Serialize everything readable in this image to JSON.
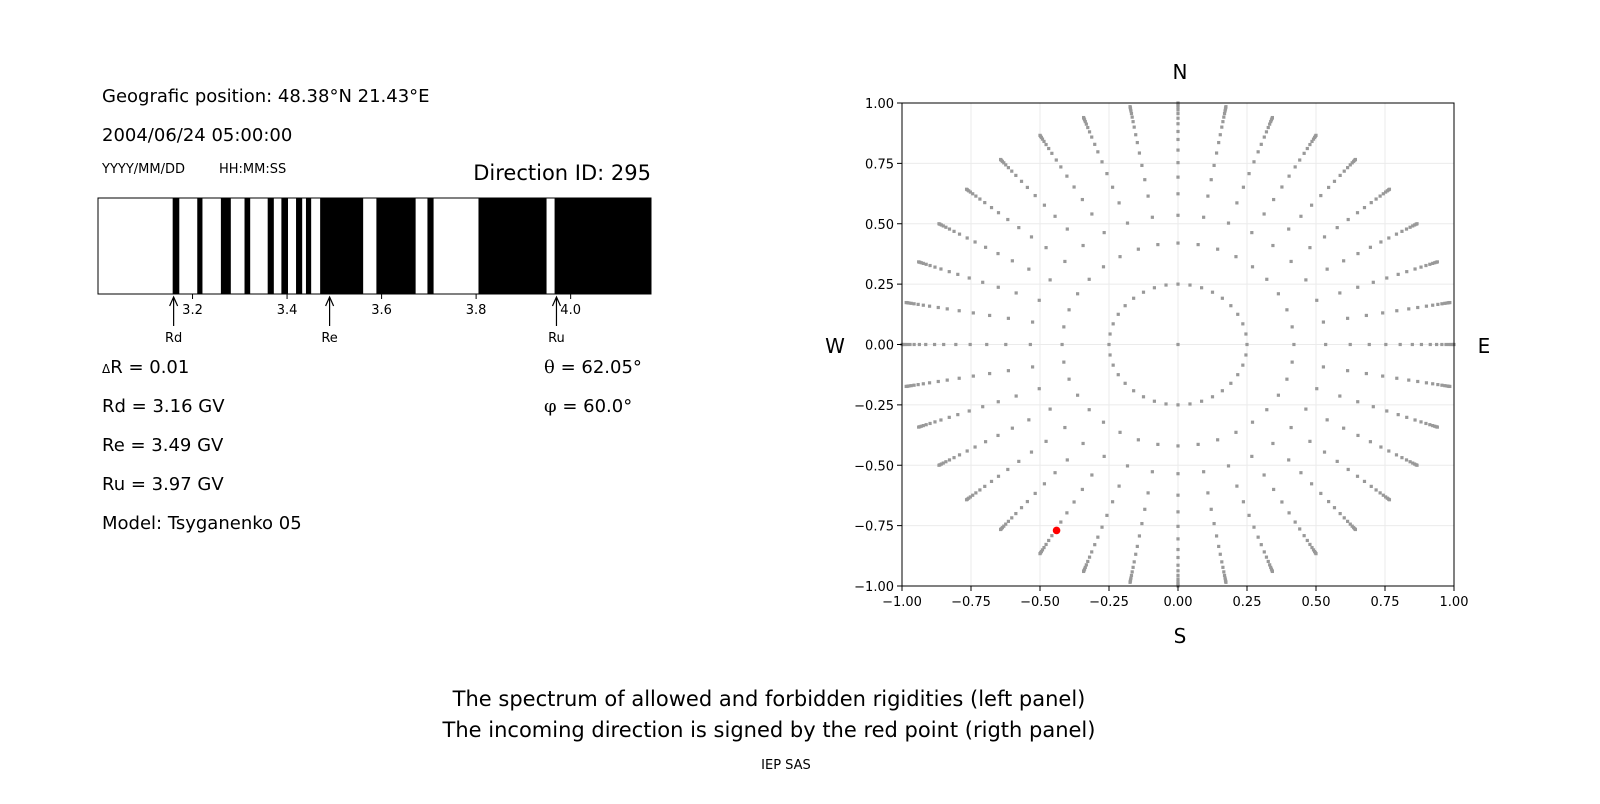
{
  "left_panel": {
    "position": "Geografic position: 48.38°N 21.43°E",
    "datetime": "2004/06/24 05:00:00",
    "date_format": "YYYY/MM/DD",
    "time_format": "HH:MM:SS",
    "direction_id": "Direction ID: 295",
    "delta_r": "R = 0.01",
    "delta_symbol": "Δ",
    "rd": "Rd = 3.16 GV",
    "re": "Re = 3.49 GV",
    "ru": "Ru = 3.97 GV",
    "model": "Model: Tsyganenko 05",
    "theta_symbol": "θ",
    "theta": " = 62.05°",
    "phi_symbol": "φ",
    "phi": " = 60.0°"
  },
  "captions": {
    "line1": "The spectrum of allowed and forbidden rigidities (left panel)",
    "line2": "The incoming direction is signed by the red point (rigth panel)",
    "credit": "IEP SAS"
  },
  "chart_data": [
    {
      "type": "spectrum-bar",
      "xlim": [
        3.0,
        4.17
      ],
      "xticks": [
        "3.2",
        "3.4",
        "3.6",
        "3.8",
        "4.0"
      ],
      "xtick_values": [
        3.2,
        3.4,
        3.6,
        3.8,
        4.0
      ],
      "forbidden_bands": [
        [
          3.158,
          3.172
        ],
        [
          3.21,
          3.221
        ],
        [
          3.26,
          3.281
        ],
        [
          3.31,
          3.322
        ],
        [
          3.359,
          3.372
        ],
        [
          3.388,
          3.402
        ],
        [
          3.419,
          3.432
        ],
        [
          3.44,
          3.451
        ],
        [
          3.47,
          3.561
        ],
        [
          3.589,
          3.672
        ],
        [
          3.697,
          3.71
        ],
        [
          3.805,
          3.949
        ],
        [
          3.966,
          4.17
        ]
      ],
      "band_color": "#000000",
      "markers": [
        {
          "label": "Rd",
          "value": 3.16
        },
        {
          "label": "Re",
          "value": 3.49
        },
        {
          "label": "Ru",
          "value": 3.97
        }
      ]
    },
    {
      "type": "scatter",
      "xlim": [
        -1.0,
        1.0
      ],
      "ylim": [
        -1.0,
        1.0
      ],
      "xticks": [
        "−1.00",
        "−0.75",
        "−0.50",
        "−0.25",
        "0.00",
        "0.25",
        "0.50",
        "0.75",
        "1.00"
      ],
      "yticks": [
        "1.00",
        "0.75",
        "0.50",
        "0.25",
        "0.00",
        "−0.25",
        "−0.50",
        "−0.75",
        "−1.00"
      ],
      "tick_values": [
        -1,
        -0.75,
        -0.5,
        -0.25,
        0,
        0.25,
        0.5,
        0.75,
        1
      ],
      "grid": true,
      "compass": {
        "north": "N",
        "south": "S",
        "west": "W",
        "east": "E"
      },
      "directions": {
        "azimuth_step_deg": 10,
        "inner_ring_radius": 0.25,
        "spoke_radii": [
          0.42,
          0.535,
          0.624,
          0.693,
          0.753,
          0.805,
          0.849,
          0.882,
          0.914,
          0.937,
          0.956,
          0.971,
          0.982,
          0.99,
          0.996,
          1.0
        ],
        "center": [
          0,
          0
        ]
      },
      "point_color": "#999999",
      "highlight": {
        "x": -0.44,
        "y": -0.77,
        "color": "#ff0000"
      }
    }
  ]
}
